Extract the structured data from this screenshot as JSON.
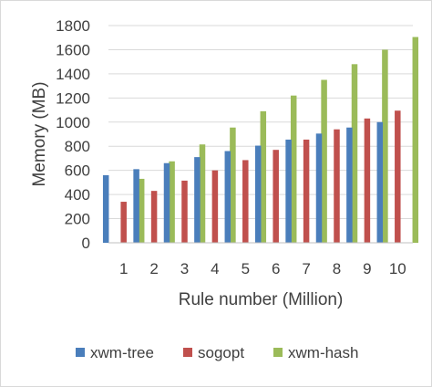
{
  "chart_data": {
    "type": "bar",
    "title": "",
    "xlabel": "Rule number (Million)",
    "ylabel": "Memory (MB)",
    "ylim": [
      0,
      1800
    ],
    "yticks": [
      0,
      200,
      400,
      600,
      800,
      1000,
      1200,
      1400,
      1600,
      1800
    ],
    "categories": [
      "1",
      "2",
      "3",
      "4",
      "5",
      "6",
      "7",
      "8",
      "9",
      "10"
    ],
    "grid": true,
    "legend_position": "bottom",
    "series": [
      {
        "name": "xwm-tree",
        "color": "#4a7ebb",
        "values": [
          560,
          610,
          660,
          710,
          760,
          805,
          855,
          905,
          955,
          1000
        ]
      },
      {
        "name": "sogopt",
        "color": "#c0504d",
        "values": [
          340,
          430,
          515,
          600,
          685,
          770,
          855,
          940,
          1030,
          1095
        ]
      },
      {
        "name": "xwm-hash",
        "color": "#9bbb59",
        "values": [
          530,
          675,
          815,
          955,
          1090,
          1220,
          1350,
          1480,
          1600,
          1705
        ]
      }
    ]
  }
}
